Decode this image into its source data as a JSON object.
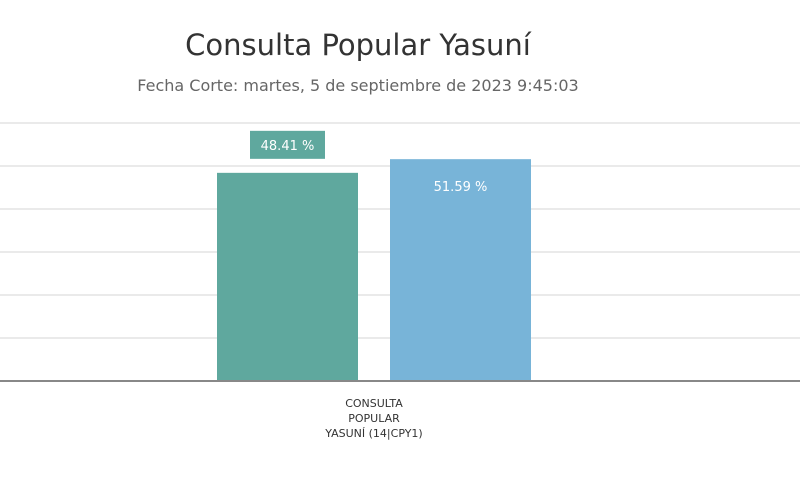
{
  "chart_data": {
    "type": "bar",
    "title": "Consulta Popular Yasuní",
    "subtitle": "Fecha Corte: martes, 5 de septiembre de 2023 9:45:03",
    "categories": [
      "CONSULTA POPULAR YASUNÍ (14|CPY1)"
    ],
    "category_lines": [
      "CONSULTA",
      "POPULAR",
      "YASUNÍ (14|CPY1)"
    ],
    "series": [
      {
        "values": [
          48.41
        ],
        "label": "48.41 %",
        "color": "#5fa89e"
      },
      {
        "values": [
          51.59
        ],
        "label": "51.59 %",
        "color": "#78b4d8"
      }
    ],
    "ylim": [
      0,
      60
    ],
    "grid": true,
    "legend": "none"
  }
}
